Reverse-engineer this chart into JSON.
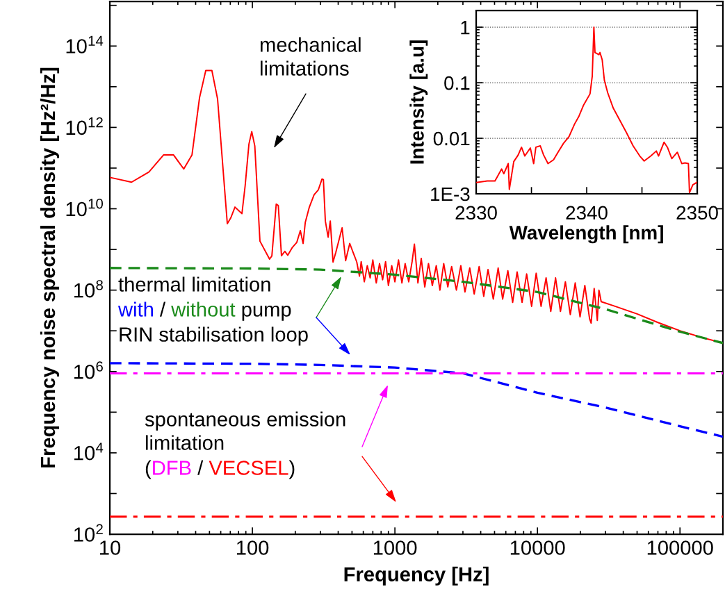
{
  "chart_data": [
    {
      "type": "line",
      "xlabel": "Frequency [Hz]",
      "ylabel": "Frequency noise spectral density [Hz²/Hz]",
      "log": "xy",
      "xlim": [
        10,
        200000
      ],
      "ylim": [
        100,
        1250000000000000.0
      ],
      "xticks": [
        10,
        100,
        1000,
        10000,
        100000
      ],
      "yticks": [
        {
          "value": 100,
          "label": "10$^{2}$"
        },
        {
          "value": 1000,
          "label": null
        },
        {
          "value": 10000,
          "label": "10$^{4}$"
        },
        {
          "value": 100000,
          "label": null
        },
        {
          "value": 1000000,
          "label": "10$^{6}$"
        },
        {
          "value": 10000000,
          "label": null
        },
        {
          "value": 100000000,
          "label": "10$^{8}$"
        },
        {
          "value": 1000000000,
          "label": null
        },
        {
          "value": 10000000000,
          "label": "10$^{10}$"
        },
        {
          "value": 100000000000,
          "label": null
        },
        {
          "value": 1000000000000,
          "label": "10$^{12}$"
        },
        {
          "value": 10000000000000,
          "label": null
        },
        {
          "value": 100000000000000,
          "label": "10$^{14}$"
        },
        {
          "value": 1000000000000000,
          "label": null
        }
      ],
      "series": [
        {
          "color": "#ff0000",
          "line_style": "solid",
          "x": [
            10,
            14.2,
            18.8,
            23.8,
            28,
            33,
            37.7,
            42.6,
            47.1,
            52,
            57,
            66.7,
            70.6,
            75.5,
            84.5,
            89,
            94.6,
            99,
            104,
            113,
            132,
            137,
            147,
            152,
            160,
            169,
            177,
            190,
            205,
            217,
            227,
            235,
            251,
            271,
            290,
            308,
            315,
            325,
            340,
            352,
            368,
            385,
            426,
            451,
            482,
            540,
            564,
            580,
            610,
            640,
            670,
            700,
            740,
            780,
            820,
            860,
            900,
            950,
            1000,
            1060,
            1120,
            1180,
            1250,
            1320,
            1370,
            1450,
            1530,
            1620,
            1720,
            1830,
            1950,
            2070,
            2200,
            2350,
            2500,
            2700,
            2900,
            3100,
            3350,
            3600,
            3900,
            4200,
            4500,
            4900,
            5300,
            5700,
            6200,
            6700,
            7200,
            7800,
            8400,
            9100,
            9800,
            10600,
            11500,
            12400,
            13400,
            14500,
            15700,
            17000,
            18400,
            19900,
            21500,
            23200,
            23800,
            25000,
            26300,
            27000,
            28000,
            35000,
            50000,
            70000,
            100000,
            150000,
            200000
          ],
          "values": [
            59000000000.0,
            45000000000.0,
            80000000000.0,
            210000000000.0,
            210000000000.0,
            95000000000.0,
            210000000000.0,
            5400000000000.0,
            25000000000000.0,
            25000000000000.0,
            5000000000000.0,
            4300000000.0,
            6000000000.0,
            11000000000.0,
            7600000000.0,
            37000000000.0,
            390000000000.0,
            790000000000.0,
            350000000000.0,
            1600000000.0,
            580000000.0,
            690000000.0,
            13000000000.0,
            12000000000.0,
            700000000.0,
            900000000.0,
            720000000.0,
            1100000000.0,
            1500000000.0,
            2900000000.0,
            1400000000.0,
            4600000000.0,
            11000000000.0,
            22000000000.0,
            29000000000.0,
            54000000000.0,
            52000000000.0,
            5000000000.0,
            2000000000.0,
            5000000000.0,
            490000000.0,
            850000000.0,
            3400000000.0,
            530000000.0,
            1400000000.0,
            490000000.0,
            220000000.0,
            500000000.0,
            160000000.0,
            400000000.0,
            200000000.0,
            550000000.0,
            150000000.0,
            450000000.0,
            180000000.0,
            500000000.0,
            130000000.0,
            400000000.0,
            160000000.0,
            550000000.0,
            150000000.0,
            450000000.0,
            160000000.0,
            500000000.0,
            1350000000.0,
            150000000.0,
            600000000.0,
            120000000.0,
            450000000.0,
            130000000.0,
            400000000.0,
            100000000.0,
            450000000.0,
            120000000.0,
            380000000.0,
            100000000.0,
            400000000.0,
            90000000.0,
            350000000.0,
            80000000.0,
            380000000.0,
            70000000.0,
            320000000.0,
            60000000.0,
            350000000.0,
            60000000.0,
            300000000.0,
            50000000.0,
            280000000.0,
            50000000.0,
            250000000.0,
            40000000.0,
            260000000.0,
            40000000.0,
            200000000.0,
            30000000.0,
            200000000.0,
            30000000.0,
            160000000.0,
            25000000.0,
            150000000.0,
            22000000.0,
            130000000.0,
            20000000.0,
            15500000.0,
            110000000.0,
            18000000.0,
            100000000.0,
            52000000.0,
            40000000.0,
            26000000.0,
            16000000.0,
            10000000.0,
            6500000.0,
            5000000.0
          ]
        },
        {
          "color": "#1a8a1a",
          "line_style": "dashed",
          "x": [
            10,
            100,
            300,
            1000,
            3000,
            10000,
            30000,
            100000,
            200000
          ],
          "values": [
            350000000.0,
            340000000.0,
            320000000.0,
            240000000.0,
            160000000.0,
            90000000.0,
            34000000.0,
            9500000.0,
            5000000.0
          ]
        },
        {
          "color": "#0000ff",
          "line_style": "dashed",
          "x": [
            10,
            100,
            300,
            1000,
            3000,
            10000,
            30000,
            100000,
            200000
          ],
          "values": [
            1600000.0,
            1550000.0,
            1450000.0,
            1250000.0,
            900000.0,
            300000.0,
            130000.0,
            45000.0,
            25000.0
          ]
        },
        {
          "color": "#ff00ff",
          "line_style": "dashdot",
          "x": [
            10,
            200000
          ],
          "values": [
            900000.0,
            900000.0
          ]
        },
        {
          "color": "#ff0000",
          "line_style": "dashdot",
          "x": [
            10,
            200000
          ],
          "values": [
            270,
            270
          ]
        }
      ],
      "annotations": [
        "mechanical",
        "limitations",
        "thermal limitation",
        "with",
        " / ",
        "without",
        " pump",
        "RIN stabilisation loop",
        "spontaneous emission",
        "limitation",
        "(",
        "DFB",
        " / ",
        "VECSEL",
        ")"
      ]
    },
    {
      "type": "line",
      "xlabel": "Wavelength [nm]",
      "ylabel": "Intensity [a.u]",
      "log": "y",
      "grid": "y",
      "xlim": [
        2330,
        2350
      ],
      "ylim": [
        0.001,
        2
      ],
      "xticks": [
        2330,
        {
          "value": 2335,
          "label": null
        },
        2340,
        {
          "value": 2345,
          "label": null
        },
        2350
      ],
      "yticks": [
        {
          "value": 0.001,
          "label": "1E-3"
        },
        0.01,
        0.1,
        1
      ],
      "series": [
        {
          "color": "#ff0000",
          "line_style": "solid",
          "x": [
            2330,
            2331.0,
            2331.7,
            2332.3,
            2332.5,
            2332.9,
            2333.0,
            2333.4,
            2333.8,
            2334.1,
            2334.4,
            2334.9,
            2335.2,
            2335.4,
            2335.8,
            2336.1,
            2336.5,
            2337.0,
            2337.4,
            2337.9,
            2338.4,
            2338.9,
            2339.3,
            2339.7,
            2340.3,
            2340.5,
            2340.65,
            2340.75,
            2341.1,
            2341.2,
            2341.4,
            2341.6,
            2341.9,
            2342.4,
            2343.0,
            2343.6,
            2344.2,
            2344.8,
            2345.2,
            2345.8,
            2346.3,
            2346.5,
            2347.0,
            2347.3,
            2347.7,
            2348.2,
            2348.6,
            2348.9,
            2349.2,
            2349.3,
            2349.6,
            2349.95
          ],
          "values": [
            0.0016,
            0.0017,
            0.0017,
            0.0028,
            0.0023,
            0.0035,
            0.0012,
            0.0038,
            0.005,
            0.0069,
            0.0048,
            0.0067,
            0.0035,
            0.0069,
            0.0073,
            0.005,
            0.0035,
            0.0041,
            0.0056,
            0.0081,
            0.0107,
            0.018,
            0.025,
            0.039,
            0.063,
            0.13,
            1,
            0.35,
            0.32,
            0.35,
            0.26,
            0.11,
            0.066,
            0.035,
            0.021,
            0.0126,
            0.0073,
            0.0048,
            0.0039,
            0.0048,
            0.0059,
            0.0048,
            0.0085,
            0.0069,
            0.0043,
            0.0056,
            0.0035,
            0.0036,
            0.0035,
            0.00105,
            0.00145,
            0.0016
          ]
        }
      ]
    }
  ]
}
